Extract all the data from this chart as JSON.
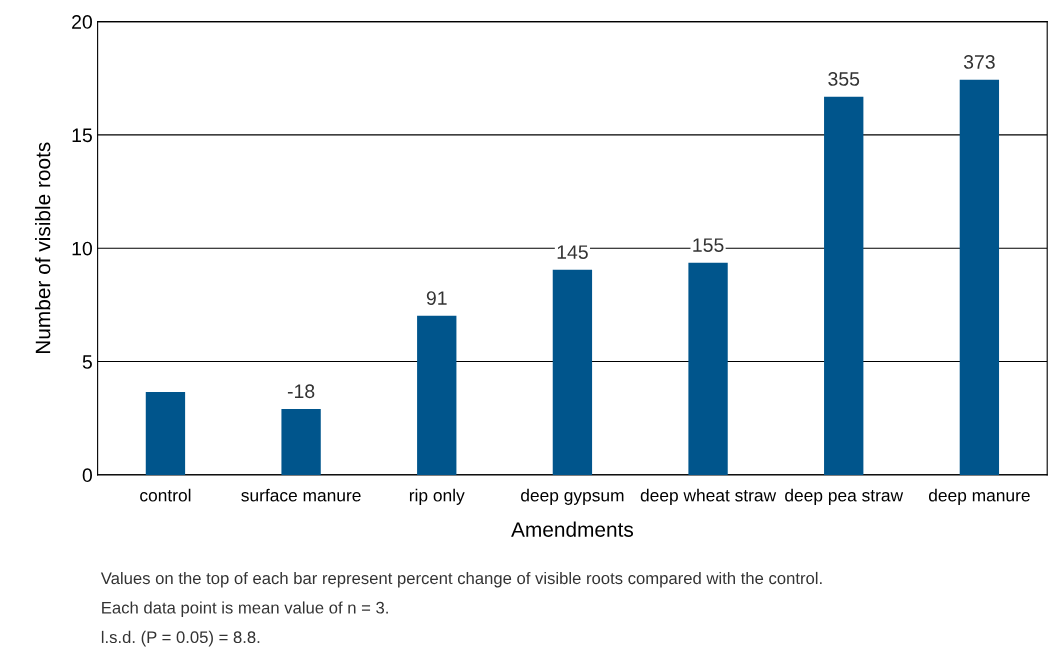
{
  "chart_data": {
    "type": "bar",
    "xlabel": "Amendments",
    "ylabel": "Number of visible roots",
    "categories": [
      "control",
      "surface manure",
      "rip only",
      "deep gypsum",
      "deep wheat straw",
      "deep pea straw",
      "deep manure"
    ],
    "values": [
      3.66,
      2.91,
      7.02,
      9.05,
      9.36,
      16.69,
      17.44
    ],
    "color": "#00558c",
    "ylim": [
      0,
      20
    ],
    "yticks": [
      0,
      5,
      10,
      15,
      20
    ],
    "grid": "y",
    "annotations": [
      {
        "text": "-18",
        "x": "surface manure",
        "y": 2.91
      },
      {
        "text": "91",
        "x": "rip only",
        "y": 7.02
      },
      {
        "text": "145",
        "x": "deep gypsum",
        "y": 9.05
      },
      {
        "text": "155",
        "x": "deep wheat straw",
        "y": 9.36
      },
      {
        "text": "355",
        "x": "deep pea straw",
        "y": 16.69
      },
      {
        "text": "373",
        "x": "deep manure",
        "y": 17.44
      },
      "Values on the top of each bar represent percent change of visible roots compared with the control.",
      "Each data point is mean value of n = 3.",
      "l.s.d. (P = 0.05) = 8.8."
    ]
  }
}
